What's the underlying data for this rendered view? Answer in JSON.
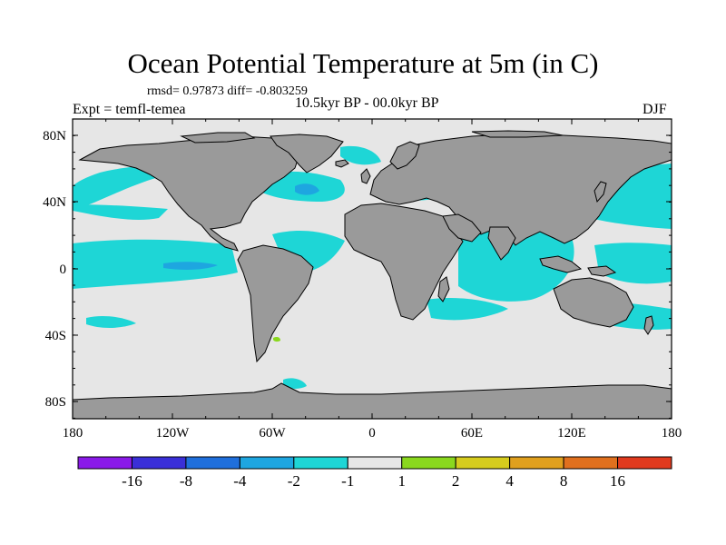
{
  "title": "Ocean Potential Temperature at 5m (in C)",
  "stats": "rmsd= 0.97873 diff= -0.803259",
  "period": "10.5kyr BP - 00.0kyr BP",
  "experiment": "Expt = temfl-temea",
  "season": "DJF",
  "x_ticks": [
    "180",
    "120W",
    "60W",
    "0",
    "60E",
    "120E",
    "180"
  ],
  "y_ticks": [
    "80N",
    "40N",
    "0",
    "40S",
    "80S"
  ],
  "colorbar": {
    "labels": [
      "-16",
      "-8",
      "-4",
      "-2",
      "-1",
      "1",
      "2",
      "4",
      "8",
      "16"
    ],
    "colors": [
      "#8a1ae8",
      "#3a2fd8",
      "#1f6fdc",
      "#1ea6e0",
      "#1ed6d6",
      "#e6e6e6",
      "#8ad81e",
      "#d6cc1e",
      "#e0a01e",
      "#e0701e",
      "#e03a1e"
    ]
  },
  "colors": {
    "land": "#9a9a9a",
    "ocean_neutral": "#e6e6e6",
    "anomaly_cool": "#1ed6d6",
    "anomaly_cooler": "#1ea6e0",
    "anomaly_warm": "#8ad81e"
  }
}
